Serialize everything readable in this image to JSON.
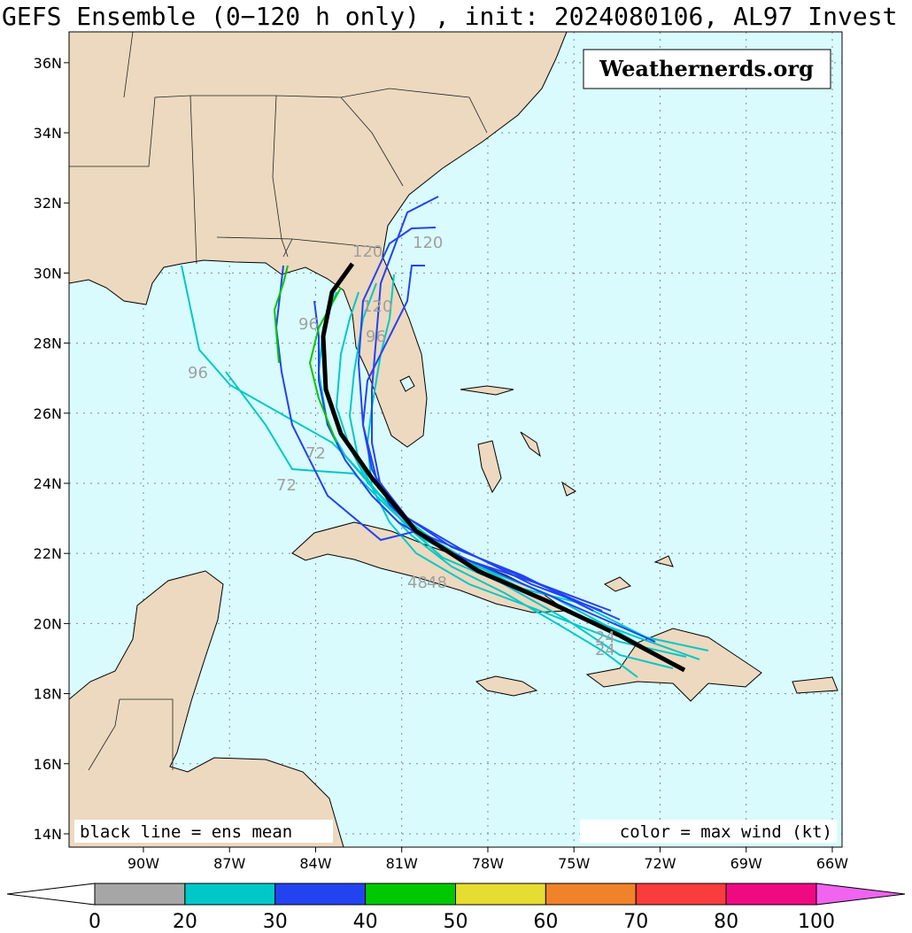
{
  "title": "GEFS Ensemble (0−120 h only) , init: 2024080106, AL97 Invest",
  "watermark": "Weathernerds.org",
  "notes": {
    "left": "black line = ens mean",
    "right": "color = max wind (kt)"
  },
  "hour_labels": [
    "24",
    "24",
    "48",
    "48",
    "72",
    "72",
    "96",
    "96",
    "96",
    "120",
    "120",
    "120"
  ],
  "map": {
    "lat_range": [
      13.62,
      36.88
    ],
    "lon_range": [
      -92.59,
      -65.66
    ],
    "lat_ticks": [
      {
        "value": 14,
        "label": "14N"
      },
      {
        "value": 16,
        "label": "16N"
      },
      {
        "value": 18,
        "label": "18N"
      },
      {
        "value": 20,
        "label": "20N"
      },
      {
        "value": 22,
        "label": "22N"
      },
      {
        "value": 24,
        "label": "24N"
      },
      {
        "value": 26,
        "label": "26N"
      },
      {
        "value": 28,
        "label": "28N"
      },
      {
        "value": 30,
        "label": "30N"
      },
      {
        "value": 32,
        "label": "32N"
      },
      {
        "value": 34,
        "label": "34N"
      },
      {
        "value": 36,
        "label": "36N"
      }
    ],
    "lon_ticks": [
      {
        "value": -90,
        "label": "90W"
      },
      {
        "value": -87,
        "label": "87W"
      },
      {
        "value": -84,
        "label": "84W"
      },
      {
        "value": -81,
        "label": "81W"
      },
      {
        "value": -78,
        "label": "78W"
      },
      {
        "value": -75,
        "label": "75W"
      },
      {
        "value": -72,
        "label": "72W"
      },
      {
        "value": -69,
        "label": "69W"
      },
      {
        "value": -66,
        "label": "66W"
      }
    ],
    "grid": true
  },
  "colorbar": {
    "ticks": [
      0,
      20,
      30,
      40,
      50,
      60,
      70,
      80,
      100
    ],
    "colors": [
      "#a6a6a6",
      "#00c8c8",
      "#2343f0",
      "#00c800",
      "#e6dc32",
      "#f0822a",
      "#fa3c3c",
      "#f00a82"
    ],
    "under_color": "#ffffff",
    "over_color": "#f064f0"
  }
}
